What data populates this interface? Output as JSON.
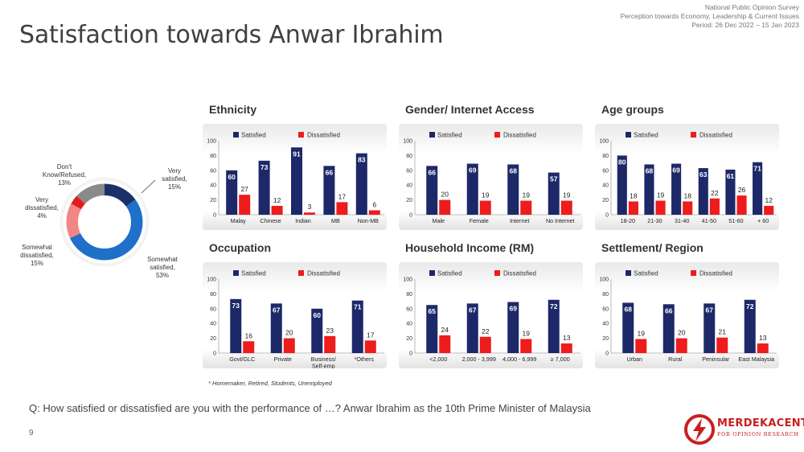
{
  "header": {
    "survey_name": "National Public Opinion Survey",
    "survey_topic": "Perception towards Economy, Leadership & Current Issues",
    "period": "Period: 26 Dec 2022 – 15 Jan 2023"
  },
  "title": "Satisfaction towards Anwar Ibrahim",
  "colors": {
    "satisfied": "#1d2868",
    "dissatisfied": "#ee1c1c"
  },
  "chart_data": [
    {
      "type": "pie",
      "subtype": "donut",
      "title": "",
      "slices": [
        {
          "label": "Very satisfied, 15%",
          "value": 15,
          "color": "#1b2f6b"
        },
        {
          "label": "Somewhat satisfied, 53%",
          "value": 53,
          "color": "#1e70c9"
        },
        {
          "label": "Somewhat dissatisfied, 15%",
          "value": 15,
          "color": "#f28585"
        },
        {
          "label": "Very dissatisfied, 4%",
          "value": 4,
          "color": "#e41b1b"
        },
        {
          "label": "Don't Know/Refused, 13%",
          "value": 13,
          "color": "#8a8a8a"
        }
      ]
    },
    {
      "type": "bar",
      "title": "Ethnicity",
      "ylim": [
        0,
        100
      ],
      "yticks": [
        0,
        20,
        40,
        60,
        80,
        100
      ],
      "legend": [
        "Satisfied",
        "Dissatisfied"
      ],
      "categories": [
        "Malay",
        "Chinese",
        "Indian",
        "MB",
        "Non-MB"
      ],
      "series": [
        {
          "name": "Satisfied",
          "values": [
            60,
            73,
            91,
            66,
            83
          ]
        },
        {
          "name": "Dissatisfied",
          "values": [
            27,
            12,
            3,
            17,
            6
          ]
        }
      ]
    },
    {
      "type": "bar",
      "title": "Gender/ Internet Access",
      "ylim": [
        0,
        100
      ],
      "yticks": [
        0,
        20,
        40,
        60,
        80,
        100
      ],
      "legend": [
        "Satisfied",
        "Dissatisfied"
      ],
      "categories": [
        "Male",
        "Female",
        "Internet",
        "No Internet"
      ],
      "series": [
        {
          "name": "Satisfied",
          "values": [
            66,
            69,
            68,
            57
          ]
        },
        {
          "name": "Dissatisfied",
          "values": [
            20,
            19,
            19,
            19
          ]
        }
      ]
    },
    {
      "type": "bar",
      "title": "Age groups",
      "ylim": [
        0,
        100
      ],
      "yticks": [
        0,
        20,
        40,
        60,
        80,
        100
      ],
      "legend": [
        "Satisfied",
        "Dissatisfied"
      ],
      "categories": [
        "18-20",
        "21-30",
        "31-40",
        "41-50",
        "51-60",
        "+ 60"
      ],
      "series": [
        {
          "name": "Satisfied",
          "values": [
            80,
            68,
            69,
            63,
            61,
            71
          ]
        },
        {
          "name": "Dissatisfied",
          "values": [
            18,
            19,
            18,
            22,
            26,
            12
          ]
        }
      ]
    },
    {
      "type": "bar",
      "title": "Occupation",
      "ylim": [
        0,
        100
      ],
      "yticks": [
        0,
        20,
        40,
        60,
        80,
        100
      ],
      "legend": [
        "Satisfied",
        "Dissatisfied"
      ],
      "categories": [
        "Govt/GLC",
        "Private",
        "Business/ Self-emp",
        "*Others"
      ],
      "series": [
        {
          "name": "Satisfied",
          "values": [
            73,
            67,
            60,
            71
          ]
        },
        {
          "name": "Dissatisfied",
          "values": [
            16,
            20,
            23,
            17
          ]
        }
      ]
    },
    {
      "type": "bar",
      "title": "Household Income (RM)",
      "ylim": [
        0,
        100
      ],
      "yticks": [
        0,
        20,
        40,
        60,
        80,
        100
      ],
      "legend": [
        "Satisfied",
        "Dissatisfied"
      ],
      "categories": [
        "<2,000",
        "2,000 - 3,999",
        "4,000 - 6,999",
        "≥ 7,000"
      ],
      "series": [
        {
          "name": "Satisfied",
          "values": [
            65,
            67,
            69,
            72
          ]
        },
        {
          "name": "Dissatisfied",
          "values": [
            24,
            22,
            19,
            13
          ]
        }
      ]
    },
    {
      "type": "bar",
      "title": "Settlement/ Region",
      "ylim": [
        0,
        100
      ],
      "yticks": [
        0,
        20,
        40,
        60,
        80,
        100
      ],
      "legend": [
        "Satisfied",
        "Dissatisfied"
      ],
      "categories": [
        "Urban",
        "Rural",
        "Peninsular",
        "East Malaysia"
      ],
      "series": [
        {
          "name": "Satisfied",
          "values": [
            68,
            66,
            67,
            72
          ]
        },
        {
          "name": "Dissatisfied",
          "values": [
            19,
            20,
            21,
            13
          ]
        }
      ]
    }
  ],
  "footnote": "* Homemaker, Retired, Students, Unemployed",
  "question": "Q: How satisfied or dissatisfied are you with the performance of …? Anwar Ibrahim as the 10th Prime Minister of Malaysia",
  "page_number": "9",
  "logo": {
    "name": "MERDEKACENTER",
    "tagline": "FOR OPINION RESEARCH"
  }
}
